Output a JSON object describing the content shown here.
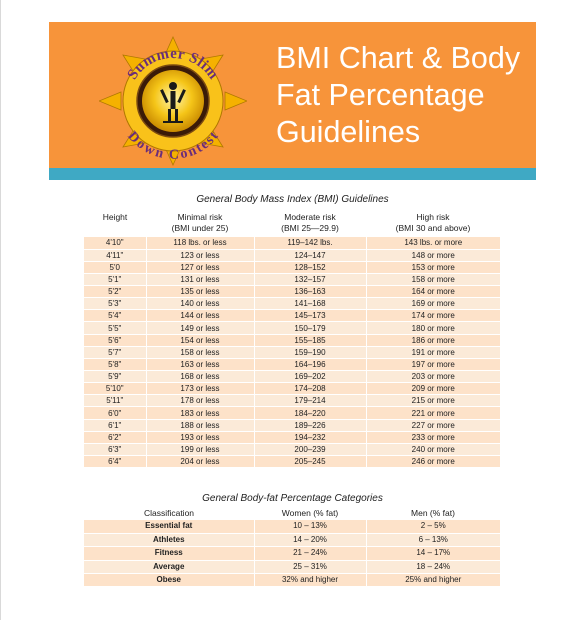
{
  "header": {
    "title_lines": [
      "BMI Chart & Body",
      "Fat Percentage",
      "Guidelines"
    ],
    "logo": {
      "ring_text_top": "Summer Slim",
      "ring_text_bottom": "Down Contest",
      "icon": "sun-figure-logo-icon"
    }
  },
  "colors": {
    "banner": "#f7943a",
    "stripe": "#3fa9c4",
    "row_light": "#fbead8",
    "row_dark": "#fde2c9"
  },
  "bmi_section": {
    "title": "General Body Mass Index (BMI) Guidelines",
    "columns": [
      {
        "label": "Height",
        "sub": ""
      },
      {
        "label": "Minimal risk",
        "sub": "(BMI under 25)"
      },
      {
        "label": "Moderate risk",
        "sub": "(BMI 25—29.9)"
      },
      {
        "label": "High risk",
        "sub": "(BMI 30 and above)"
      }
    ],
    "rows": [
      [
        "4'10\"",
        "118 lbs. or less",
        "119–142 lbs.",
        "143 lbs. or more"
      ],
      [
        "4'11\"",
        "123 or less",
        "124–147",
        "148 or more"
      ],
      [
        "5'0",
        "127 or less",
        "128–152",
        "153 or more"
      ],
      [
        "5'1\"",
        "131 or less",
        "132–157",
        "158 or more"
      ],
      [
        "5'2\"",
        "135 or less",
        "136–163",
        "164 or more"
      ],
      [
        "5'3\"",
        "140 or less",
        "141–168",
        "169 or more"
      ],
      [
        "5'4\"",
        "144 or less",
        "145–173",
        "174 or more"
      ],
      [
        "5'5\"",
        "149 or less",
        "150–179",
        "180 or more"
      ],
      [
        "5'6\"",
        "154 or less",
        "155–185",
        "186 or more"
      ],
      [
        "5'7\"",
        "158 or less",
        "159–190",
        "191 or more"
      ],
      [
        "5'8\"",
        "163 or less",
        "164–196",
        "197 or more"
      ],
      [
        "5'9\"",
        "168 or less",
        "169–202",
        "203 or more"
      ],
      [
        "5'10\"",
        "173 or less",
        "174–208",
        "209 or more"
      ],
      [
        "5'11\"",
        "178 or less",
        "179–214",
        "215 or more"
      ],
      [
        "6'0\"",
        "183 or less",
        "184–220",
        "221 or more"
      ],
      [
        "6'1\"",
        "188 or less",
        "189–226",
        "227 or more"
      ],
      [
        "6'2\"",
        "193 or less",
        "194–232",
        "233 or more"
      ],
      [
        "6'3\"",
        "199 or less",
        "200–239",
        "240 or more"
      ],
      [
        "6'4\"",
        "204 or less",
        "205–245",
        "246 or more"
      ]
    ]
  },
  "fat_section": {
    "title": "General Body-fat Percentage Categories",
    "columns": [
      "Classification",
      "Women (% fat)",
      "Men (% fat)"
    ],
    "rows": [
      [
        "Essential fat",
        "10 – 13%",
        "2 – 5%"
      ],
      [
        "Athletes",
        "14 – 20%",
        "6 – 13%"
      ],
      [
        "Fitness",
        "21 – 24%",
        "14 – 17%"
      ],
      [
        "Average",
        "25 – 31%",
        "18 – 24%"
      ],
      [
        "Obese",
        "32% and higher",
        "25% and higher"
      ]
    ]
  }
}
